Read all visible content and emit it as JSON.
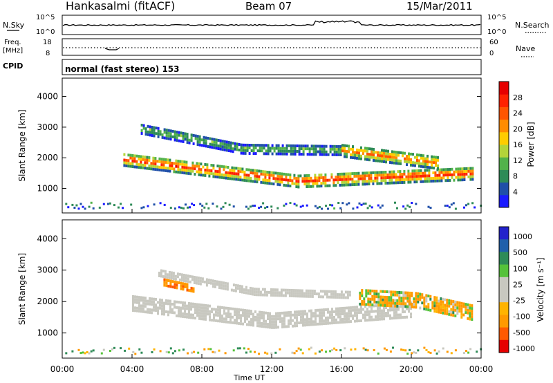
{
  "header": {
    "station": "Hankasalmi (fitACF)",
    "beam": "Beam 07",
    "date": "15/Mar/2011"
  },
  "top_panels": {
    "nsky_label": "N.Sky",
    "nsky_ticks": [
      "10^5",
      "10^0"
    ],
    "nsearch_label": "N.Search",
    "nsearch_ticks": [
      "10^5",
      "10^0"
    ],
    "freq_label_1": "Freq.",
    "freq_label_2": "[MHz]",
    "freq_ticks": [
      "18",
      "8"
    ],
    "nave_label": "Nave",
    "nave_ticks": [
      "60",
      "0"
    ],
    "cpid_label": "CPID",
    "cpid_text": "normal (fast stereo) 153"
  },
  "colors": {
    "power_scale": [
      "#1a1aff",
      "#1f4fa8",
      "#2e8b57",
      "#52b24a",
      "#b3d43a",
      "#ffcc00",
      "#ff8c00",
      "#ff5500",
      "#ff2200",
      "#e60000"
    ],
    "velocity_scale": [
      "#e60000",
      "#ff5a00",
      "#ff9900",
      "#ffb300",
      "#c8c8c0",
      "#c8c8c0",
      "#55c23a",
      "#2e8b57",
      "#1f5faa",
      "#2222cc"
    ],
    "ground_scatter": "#c8c8c0"
  },
  "chart_data": [
    {
      "type": "heatmap",
      "title": "",
      "xlabel": "Time UT",
      "ylabel": "Slant Range [km]",
      "xticks": [
        "00:00",
        "04:00",
        "08:00",
        "12:00",
        "16:00",
        "20:00",
        "00:00"
      ],
      "yticks": [
        "1000",
        "2000",
        "3000",
        "4000"
      ],
      "xlim": [
        0,
        24
      ],
      "ylim": [
        200,
        4600
      ],
      "colorbar": {
        "label": "Power [dB]",
        "ticks": [
          "4",
          "8",
          "12",
          "16",
          "20",
          "24",
          "28"
        ],
        "range": [
          0,
          32
        ]
      },
      "bands": [
        {
          "t0": 3.5,
          "t1": 23.5,
          "center_start": 1900,
          "center_mid": 1200,
          "center_end": 1450,
          "width_km": 400,
          "peak_db": 28
        },
        {
          "t0": 4.5,
          "t1": 16.0,
          "center_start": 2900,
          "center_mid": 2250,
          "center_end": 2200,
          "width_km": 300,
          "peak_db": 12
        },
        {
          "t0": 16.0,
          "t1": 21.5,
          "center_start": 2200,
          "center_mid": 2000,
          "center_end": 1800,
          "width_km": 400,
          "peak_db": 24
        }
      ]
    },
    {
      "type": "heatmap",
      "title": "",
      "xlabel": "Time UT",
      "ylabel": "Slant Range [km]",
      "xticks": [
        "00:00",
        "04:00",
        "08:00",
        "12:00",
        "16:00",
        "20:00",
        "00:00"
      ],
      "yticks": [
        "1000",
        "2000",
        "3000",
        "4000"
      ],
      "xlim": [
        0,
        24
      ],
      "ylim": [
        200,
        4600
      ],
      "colorbar": {
        "label": "Velocity [m s⁻¹]",
        "ticks": [
          "1000",
          "500",
          "100",
          "25",
          "-25",
          "-100",
          "-500",
          "-1000"
        ]
      },
      "bands": [
        {
          "t0": 4.0,
          "t1": 20.0,
          "center_start": 1900,
          "center_mid": 1350,
          "center_end": 1700,
          "width_km": 450,
          "velocity": 0
        },
        {
          "t0": 5.5,
          "t1": 16.5,
          "center_start": 2900,
          "center_mid": 2300,
          "center_end": 2200,
          "width_km": 250,
          "velocity": 0
        },
        {
          "t0": 5.8,
          "t1": 7.5,
          "center_start": 2600,
          "center_mid": 2500,
          "center_end": 2400,
          "width_km": 250,
          "velocity": -400
        },
        {
          "t0": 17.0,
          "t1": 23.5,
          "center_start": 2100,
          "center_mid": 2000,
          "center_end": 1600,
          "width_km": 450,
          "velocity": -80
        }
      ]
    }
  ]
}
